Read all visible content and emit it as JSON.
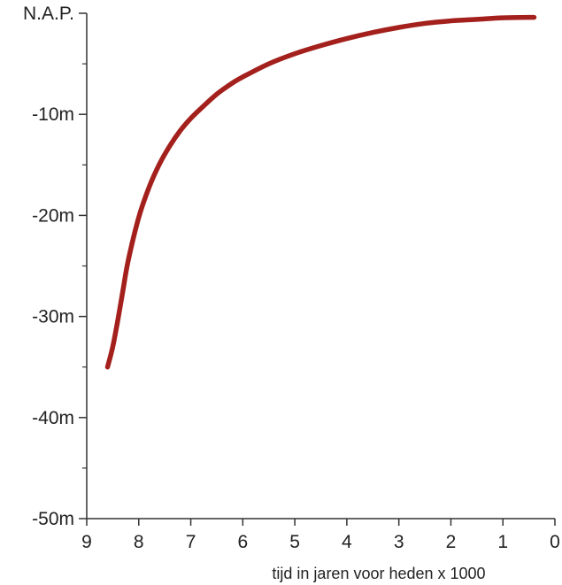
{
  "chart_data": {
    "type": "line",
    "title": "",
    "xlabel": "tijd in jaren voor heden x 1000",
    "ylabel": "",
    "x_reversed": true,
    "xlim": [
      9,
      0
    ],
    "ylim": [
      -50,
      0
    ],
    "x_ticks": [
      9,
      8,
      7,
      6,
      5,
      4,
      3,
      2,
      1,
      0
    ],
    "x_tick_labels": [
      "9",
      "8",
      "7",
      "6",
      "5",
      "4",
      "3",
      "2",
      "1",
      "0"
    ],
    "y_ticks": [
      0,
      -10,
      -20,
      -30,
      -40,
      -50
    ],
    "y_tick_labels": [
      "N.A.P.",
      "-10m",
      "-20m",
      "-30m",
      "-40m",
      "-50m"
    ],
    "grid": false,
    "series": [
      {
        "color": "#a3201c",
        "x": [
          8.6,
          8.5,
          8.4,
          8.3,
          8.2,
          8.0,
          7.8,
          7.6,
          7.4,
          7.2,
          7.0,
          6.8,
          6.5,
          6.2,
          6.0,
          5.5,
          5.0,
          4.5,
          4.0,
          3.5,
          3.0,
          2.5,
          2.0,
          1.5,
          1.0,
          0.4
        ],
        "y": [
          -35,
          -33,
          -30.3,
          -27.3,
          -24.4,
          -20.2,
          -17.2,
          -14.9,
          -13.1,
          -11.6,
          -10.4,
          -9.4,
          -8.0,
          -6.9,
          -6.3,
          -5.0,
          -4.0,
          -3.2,
          -2.5,
          -1.9,
          -1.4,
          -1.0,
          -0.75,
          -0.6,
          -0.45,
          -0.4
        ]
      }
    ]
  }
}
